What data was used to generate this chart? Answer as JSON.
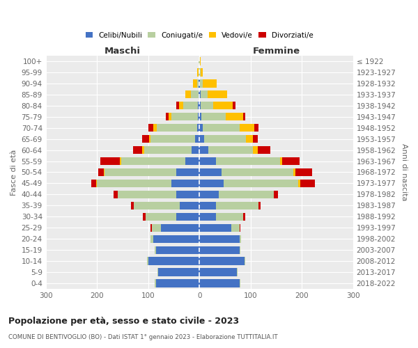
{
  "age_groups": [
    "0-4",
    "5-9",
    "10-14",
    "15-19",
    "20-24",
    "25-29",
    "30-34",
    "35-39",
    "40-44",
    "45-49",
    "50-54",
    "55-59",
    "60-64",
    "65-69",
    "70-74",
    "75-79",
    "80-84",
    "85-89",
    "90-94",
    "95-99",
    "100+"
  ],
  "birth_years": [
    "2018-2022",
    "2013-2017",
    "2008-2012",
    "2003-2007",
    "1998-2002",
    "1993-1997",
    "1988-1992",
    "1983-1987",
    "1978-1982",
    "1973-1977",
    "1968-1972",
    "1963-1967",
    "1958-1962",
    "1953-1957",
    "1948-1952",
    "1943-1947",
    "1938-1942",
    "1933-1937",
    "1928-1932",
    "1923-1927",
    "≤ 1922"
  ],
  "maschi": {
    "celibi": [
      85,
      80,
      100,
      85,
      90,
      75,
      45,
      38,
      45,
      55,
      45,
      28,
      15,
      8,
      5,
      3,
      3,
      2,
      1,
      0,
      0
    ],
    "coniugati": [
      2,
      2,
      2,
      2,
      5,
      18,
      60,
      90,
      115,
      145,
      140,
      125,
      93,
      88,
      78,
      52,
      28,
      14,
      4,
      2,
      1
    ],
    "vedovi": [
      0,
      0,
      0,
      0,
      0,
      0,
      0,
      0,
      0,
      2,
      2,
      2,
      4,
      2,
      7,
      5,
      9,
      12,
      8,
      2,
      0
    ],
    "divorziati": [
      0,
      0,
      0,
      0,
      0,
      2,
      5,
      5,
      7,
      9,
      11,
      38,
      18,
      14,
      9,
      5,
      5,
      0,
      0,
      0,
      0
    ]
  },
  "femmine": {
    "nubili": [
      78,
      73,
      88,
      78,
      78,
      62,
      33,
      33,
      38,
      48,
      43,
      33,
      17,
      9,
      7,
      4,
      3,
      2,
      1,
      0,
      0
    ],
    "coniugate": [
      2,
      2,
      2,
      2,
      4,
      16,
      52,
      82,
      107,
      145,
      140,
      125,
      88,
      82,
      72,
      48,
      24,
      14,
      5,
      2,
      1
    ],
    "vedove": [
      0,
      0,
      0,
      0,
      0,
      0,
      0,
      0,
      0,
      4,
      4,
      4,
      9,
      14,
      28,
      33,
      38,
      38,
      28,
      5,
      1
    ],
    "divorziate": [
      0,
      0,
      0,
      0,
      0,
      2,
      5,
      4,
      9,
      28,
      33,
      33,
      24,
      9,
      9,
      5,
      5,
      0,
      0,
      0,
      0
    ]
  },
  "colors": {
    "celibi": "#4472c4",
    "coniugati": "#b8cfa0",
    "vedovi": "#ffc000",
    "divorziati": "#cc0000"
  },
  "xlim": 300,
  "title": "Popolazione per età, sesso e stato civile - 2023",
  "subtitle": "COMUNE DI BENTIVOGLIO (BO) - Dati ISTAT 1° gennaio 2023 - Elaborazione TUTTITALIA.IT",
  "ylabel_left": "Fasce di età",
  "ylabel_right": "Anni di nascita",
  "xlabel_left": "Maschi",
  "xlabel_right": "Femmine",
  "bg_color": "#ebebeb",
  "grid_color": "#ffffff"
}
